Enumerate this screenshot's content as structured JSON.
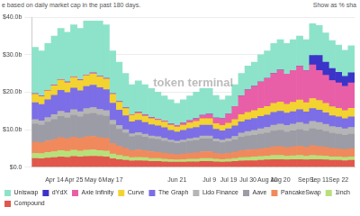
{
  "chart_data": {
    "type": "bar",
    "stacked": true,
    "subtitle": "e based on daily market cap in the past 180 days.",
    "toggle_label": "Show as % sha",
    "annotation": "token terminal",
    "legend": "bottom",
    "grid": true,
    "categories": [
      null,
      null,
      null,
      "Apr 14",
      null,
      null,
      "Apr 25",
      null,
      null,
      "May 6",
      null,
      null,
      "May 17",
      null,
      null,
      null,
      null,
      null,
      null,
      null,
      null,
      null,
      "Jun 21",
      null,
      null,
      null,
      null,
      "Jul 9",
      null,
      null,
      "Jul 19",
      null,
      null,
      "Jul 30",
      null,
      null,
      "Aug 10",
      null,
      "Aug 20",
      null,
      null,
      null,
      "Sep 1",
      null,
      "Sep 11",
      null,
      null,
      "Sep 22",
      null,
      null
    ],
    "ylim": [
      0,
      40
    ],
    "yticks": [
      {
        "value": 0,
        "label": "$0.0"
      },
      {
        "value": 10,
        "label": "$10.0b"
      },
      {
        "value": 20,
        "label": "$20.0b"
      },
      {
        "value": 30,
        "label": "$30.0b"
      },
      {
        "value": 40,
        "label": "$40.0b"
      }
    ],
    "series": [
      {
        "name": "Uniswap",
        "color": "#8de3c9",
        "values": [
          12.4,
          12.0,
          12.5,
          13.1,
          13.6,
          13.3,
          13.9,
          13.7,
          14.4,
          13.9,
          14.7,
          14.3,
          11.4,
          10.5,
          9.2,
          8.0,
          8.4,
          8.1,
          7.8,
          7.2,
          6.7,
          6.5,
          5.9,
          6.3,
          6.6,
          7.1,
          7.2,
          6.9,
          6.0,
          5.1,
          4.8,
          5.8,
          6.0,
          6.4,
          6.4,
          7.3,
          7.3,
          8.0,
          8.1,
          8.2,
          8.2,
          8.1,
          8.3,
          8.5,
          8.0,
          7.8,
          7.5,
          7.3,
          7.0,
          7.2
        ]
      },
      {
        "name": "dYdX",
        "color": "#3b34c9",
        "values": [
          0,
          0,
          0,
          0,
          0,
          0,
          0,
          0,
          0,
          0,
          0,
          0,
          0,
          0,
          0,
          0,
          0,
          0,
          0,
          0,
          0,
          0,
          0,
          0,
          0,
          0,
          0,
          0,
          0,
          0,
          0,
          0,
          0,
          0,
          0,
          0,
          0,
          0,
          0,
          0,
          0,
          0,
          0,
          2.5,
          4.0,
          3.5,
          3.2,
          2.8,
          2.6,
          2.7
        ]
      },
      {
        "name": "Axie Infinity",
        "color": "#e85fa8",
        "values": [
          0.2,
          0.2,
          0.2,
          0.2,
          0.2,
          0.2,
          0.2,
          0.2,
          0.2,
          0.2,
          0.2,
          0.2,
          0.2,
          0.2,
          0.2,
          0.2,
          0.3,
          0.3,
          0.3,
          0.3,
          0.3,
          0.3,
          0.4,
          0.5,
          0.6,
          0.7,
          0.9,
          1.2,
          1.5,
          1.8,
          2.5,
          3.5,
          5.0,
          6.0,
          6.5,
          7.0,
          7.5,
          8.0,
          8.5,
          8.0,
          8.5,
          9.0,
          8.5,
          9.0,
          8.0,
          7.5,
          7.0,
          6.8,
          6.5,
          6.8
        ]
      },
      {
        "name": "Curve",
        "color": "#f2d330",
        "values": [
          2.2,
          2.1,
          2.3,
          2.5,
          2.7,
          2.6,
          2.8,
          2.7,
          2.9,
          3.0,
          2.9,
          2.8,
          2.3,
          2.1,
          1.9,
          1.7,
          1.8,
          1.7,
          1.6,
          1.5,
          1.5,
          1.4,
          1.3,
          1.4,
          1.5,
          1.6,
          1.7,
          1.7,
          1.5,
          1.4,
          1.5,
          1.7,
          1.9,
          2.0,
          2.1,
          2.2,
          2.3,
          2.4,
          2.5,
          2.4,
          2.5,
          2.6,
          2.5,
          2.7,
          2.6,
          2.5,
          2.4,
          2.3,
          2.2,
          2.3
        ]
      },
      {
        "name": "The Graph",
        "color": "#7c6ee6",
        "values": [
          4.5,
          4.4,
          4.8,
          5.2,
          5.6,
          5.4,
          5.8,
          5.6,
          5.9,
          6.0,
          5.8,
          5.6,
          4.6,
          4.1,
          3.7,
          3.2,
          3.3,
          3.1,
          3.0,
          2.9,
          2.8,
          2.6,
          2.5,
          2.6,
          2.7,
          2.8,
          2.9,
          2.9,
          2.6,
          2.5,
          2.6,
          2.8,
          3.0,
          3.1,
          3.2,
          3.3,
          3.3,
          3.4,
          3.4,
          3.3,
          3.3,
          3.4,
          3.2,
          3.4,
          3.3,
          3.1,
          2.9,
          2.8,
          2.7,
          2.8
        ]
      },
      {
        "name": "Lido Finance",
        "color": "#b5b5b5",
        "values": [
          1.2,
          1.1,
          1.2,
          1.3,
          1.4,
          1.4,
          1.5,
          1.4,
          1.5,
          1.6,
          1.5,
          1.5,
          1.2,
          1.0,
          0.9,
          0.8,
          0.8,
          0.8,
          0.7,
          0.7,
          0.7,
          0.6,
          0.6,
          0.6,
          0.7,
          0.7,
          0.8,
          0.8,
          0.7,
          0.7,
          0.8,
          0.9,
          1.1,
          1.2,
          1.3,
          1.4,
          1.5,
          1.6,
          1.7,
          1.7,
          1.8,
          1.9,
          1.9,
          2.0,
          2.0,
          1.9,
          1.8,
          1.8,
          1.7,
          1.8
        ]
      },
      {
        "name": "Aave",
        "color": "#9c9ca6",
        "values": [
          4.8,
          4.7,
          5.0,
          5.3,
          5.6,
          5.5,
          5.8,
          5.7,
          6.0,
          6.1,
          6.0,
          5.9,
          5.0,
          4.5,
          4.1,
          3.7,
          3.8,
          3.6,
          3.5,
          3.4,
          3.3,
          3.1,
          3.0,
          3.1,
          3.2,
          3.3,
          3.4,
          3.4,
          3.1,
          3.0,
          3.1,
          3.3,
          3.6,
          3.7,
          3.8,
          3.9,
          4.0,
          4.2,
          4.3,
          4.2,
          4.3,
          4.4,
          4.3,
          4.5,
          4.4,
          4.2,
          4.0,
          3.9,
          3.8,
          3.9
        ]
      },
      {
        "name": "PancakeSwap",
        "color": "#f08a5d",
        "values": [
          3.0,
          2.9,
          3.1,
          3.3,
          3.5,
          3.4,
          3.5,
          3.4,
          3.6,
          3.6,
          3.5,
          3.4,
          2.8,
          2.5,
          2.2,
          1.9,
          2.0,
          1.9,
          1.8,
          1.7,
          1.6,
          1.5,
          1.4,
          1.5,
          1.6,
          1.7,
          1.8,
          1.8,
          1.6,
          1.5,
          1.6,
          1.7,
          1.9,
          2.0,
          2.0,
          2.1,
          2.2,
          2.3,
          2.4,
          2.3,
          2.4,
          2.5,
          2.4,
          2.6,
          2.5,
          2.4,
          2.3,
          2.2,
          2.1,
          2.2
        ]
      },
      {
        "name": "1inch",
        "color": "#b8e07a",
        "values": [
          1.4,
          1.4,
          1.5,
          1.6,
          1.7,
          1.6,
          1.7,
          1.6,
          1.7,
          1.7,
          1.6,
          1.6,
          1.3,
          1.1,
          1.0,
          0.9,
          0.9,
          0.9,
          0.8,
          0.8,
          0.7,
          0.7,
          0.6,
          0.7,
          0.7,
          0.7,
          0.8,
          0.8,
          0.7,
          0.7,
          0.7,
          0.8,
          0.9,
          0.9,
          1.0,
          1.0,
          1.0,
          1.1,
          1.1,
          1.0,
          1.0,
          1.1,
          1.0,
          1.1,
          1.0,
          1.0,
          0.9,
          0.9,
          0.9,
          0.9
        ]
      },
      {
        "name": "Compound",
        "color": "#e2574c",
        "values": [
          2.3,
          2.2,
          2.4,
          2.5,
          2.7,
          2.6,
          2.8,
          2.7,
          2.8,
          2.9,
          2.8,
          2.7,
          2.2,
          2.0,
          1.8,
          1.6,
          1.7,
          1.6,
          1.5,
          1.5,
          1.4,
          1.3,
          1.3,
          1.3,
          1.4,
          1.4,
          1.5,
          1.5,
          1.4,
          1.3,
          1.4,
          1.5,
          1.6,
          1.7,
          1.7,
          1.8,
          1.9,
          2.0,
          2.0,
          1.9,
          2.0,
          2.0,
          1.9,
          2.0,
          2.0,
          1.9,
          1.8,
          1.8,
          1.7,
          1.8
        ]
      }
    ]
  }
}
